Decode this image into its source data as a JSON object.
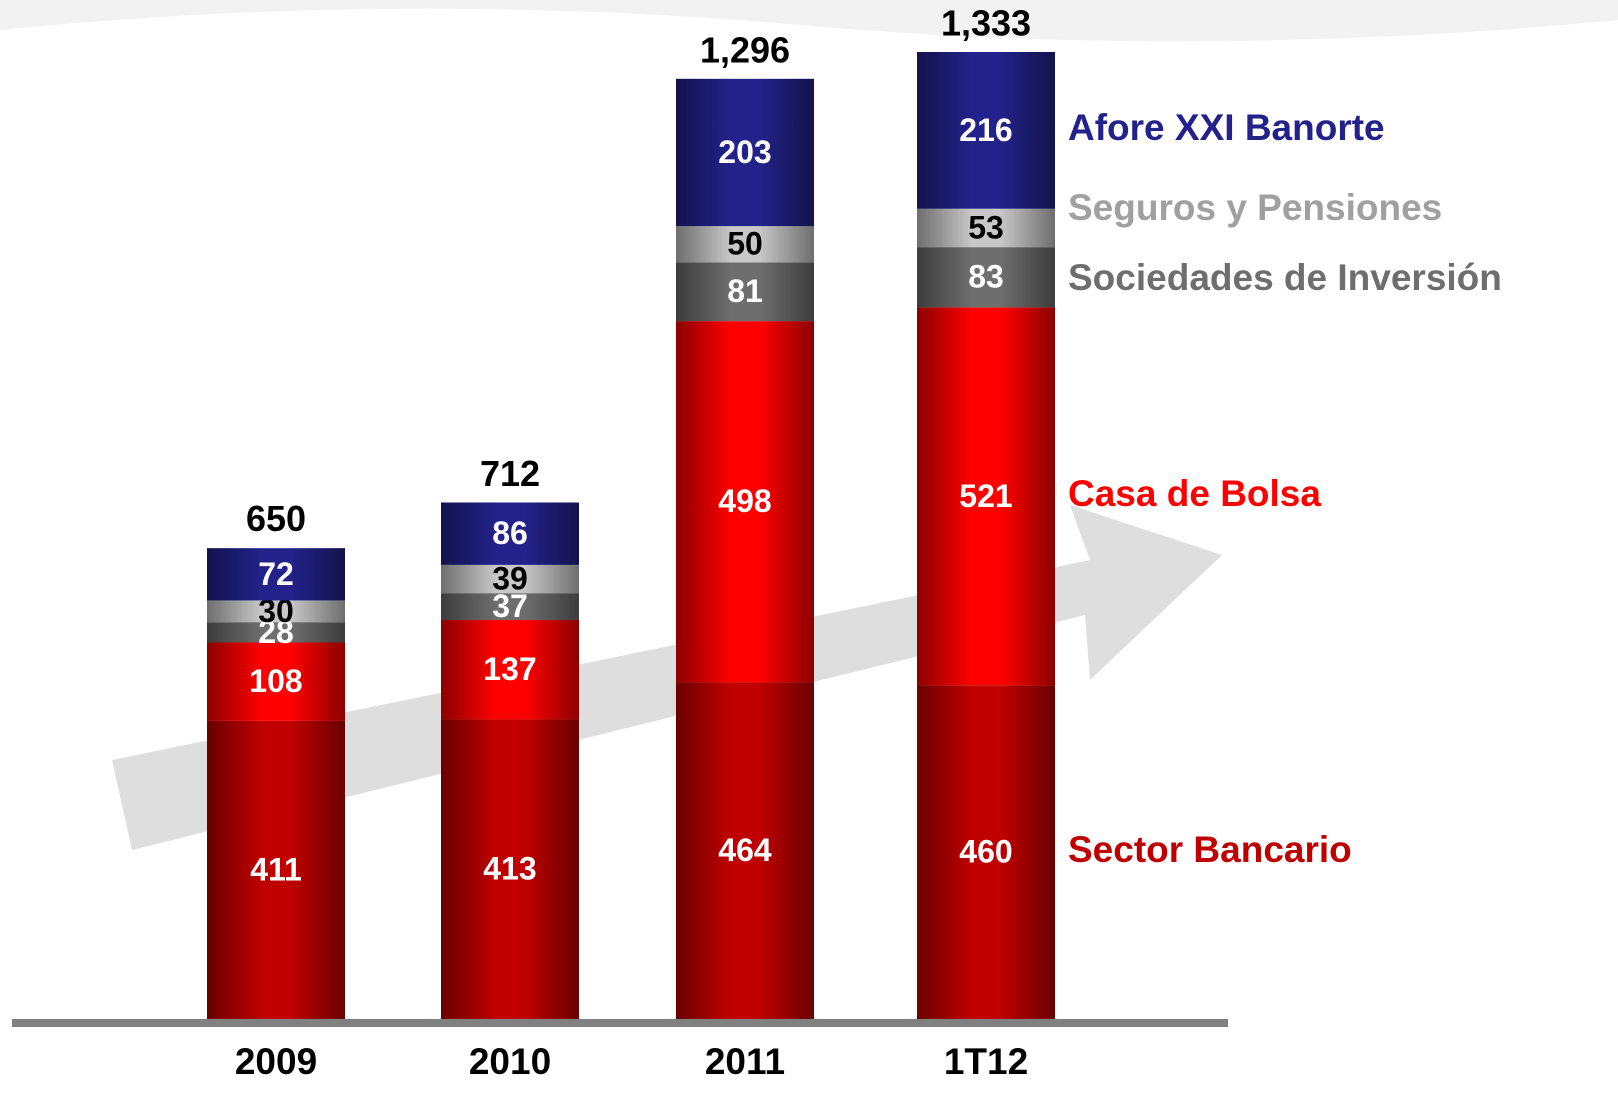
{
  "chart_data": {
    "type": "stacked_bar",
    "categories": [
      "2009",
      "2010",
      "2011",
      "1T12"
    ],
    "series": [
      {
        "name": "Sector Bancario",
        "color": "#c00000",
        "values": [
          411,
          413,
          464,
          460
        ]
      },
      {
        "name": "Casa de Bolsa",
        "color": "#ff0000",
        "values": [
          108,
          137,
          498,
          521
        ]
      },
      {
        "name": "Sociedades de Inversión",
        "color": "#6e6e6e",
        "values": [
          28,
          37,
          81,
          83
        ]
      },
      {
        "name": "Seguros y Pensiones",
        "color": "#c8c8c8",
        "values": [
          30,
          39,
          50,
          53
        ]
      },
      {
        "name": "Afore XXI Banorte",
        "color": "#22228a",
        "values": [
          72,
          86,
          203,
          216
        ]
      }
    ],
    "totals": [
      650,
      712,
      1296,
      1333
    ],
    "total_labels": [
      "650",
      "712",
      "1,296",
      "1,333"
    ]
  }
}
